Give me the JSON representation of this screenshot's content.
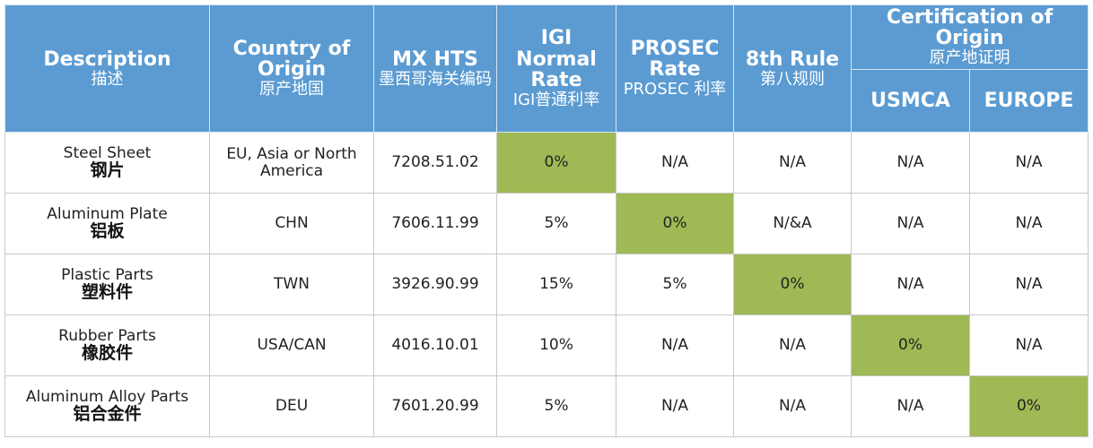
{
  "table": {
    "headers": [
      {
        "en": "Description",
        "zh": "描述"
      },
      {
        "en": "Country of Origin",
        "zh": "原产地国"
      },
      {
        "en": "MX HTS",
        "zh": "墨西哥海关编码"
      },
      {
        "en": "IGI Normal Rate",
        "zh": "IGI普通利率"
      },
      {
        "en": "PROSEC Rate",
        "zh": "PROSEC 利率"
      },
      {
        "en": "8th Rule",
        "zh": "第八规则"
      },
      {
        "en": "Certification of Origin",
        "zh": "原产地证明",
        "sub": [
          "USMCA",
          "EUROPE"
        ]
      }
    ],
    "rows": [
      {
        "en": "Steel Sheet",
        "zh": "钢片",
        "cells": [
          "EU, Asia or North America",
          "7208.51.02",
          "0%",
          "N/A",
          "N/A",
          "N/A",
          "N/A"
        ]
      },
      {
        "en": "Aluminum Plate",
        "zh": "铝板",
        "cells": [
          "CHN",
          "7606.11.99",
          "5%",
          "0%",
          "N/&A",
          "N/A",
          "N/A"
        ]
      },
      {
        "en": "Plastic Parts",
        "zh": "塑料件",
        "cells": [
          "TWN",
          "3926.90.99",
          "15%",
          "5%",
          "0%",
          "N/A",
          "N/A"
        ]
      },
      {
        "en": "Rubber Parts",
        "zh": "橡胶件",
        "cells": [
          "USA/CAN",
          "4016.10.01",
          "10%",
          "N/A",
          "N/A",
          "0%",
          "N/A"
        ]
      },
      {
        "en": "Aluminum Alloy Parts",
        "zh": "铝合金件",
        "cells": [
          "DEU",
          "7601.20.99",
          "5%",
          "N/A",
          "N/A",
          "N/A",
          "0%"
        ]
      }
    ]
  }
}
